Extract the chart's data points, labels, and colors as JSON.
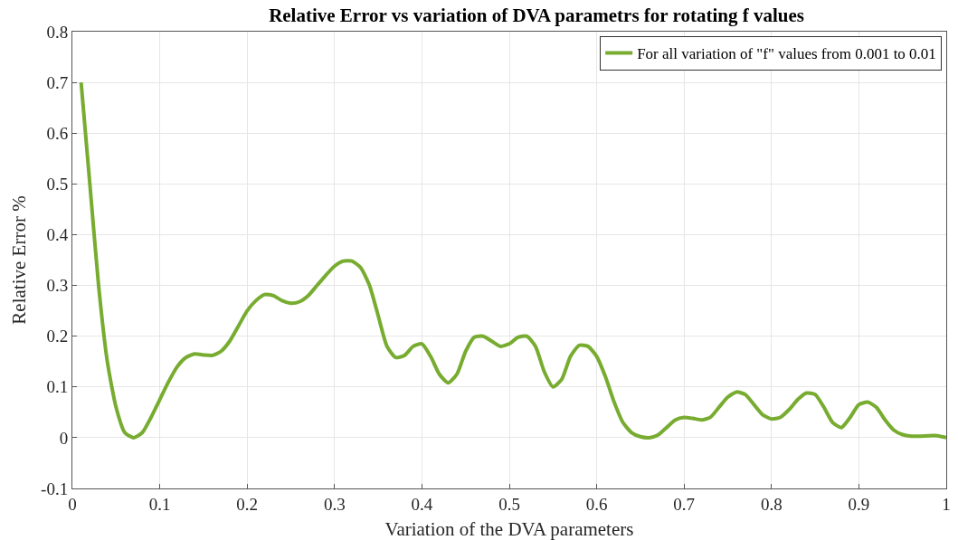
{
  "chart_data": {
    "type": "line",
    "title": "Relative Error vs variation of DVA parametrs for rotating f values",
    "xlabel": "Variation of the DVA parameters",
    "ylabel": "Relative Error %",
    "x": [
      0.01,
      0.02,
      0.03,
      0.04,
      0.05,
      0.06,
      0.07,
      0.08,
      0.09,
      0.1,
      0.11,
      0.12,
      0.13,
      0.14,
      0.15,
      0.16,
      0.17,
      0.18,
      0.19,
      0.2,
      0.21,
      0.22,
      0.23,
      0.24,
      0.25,
      0.26,
      0.27,
      0.28,
      0.29,
      0.3,
      0.31,
      0.32,
      0.33,
      0.34,
      0.35,
      0.36,
      0.37,
      0.38,
      0.39,
      0.4,
      0.41,
      0.42,
      0.43,
      0.44,
      0.45,
      0.46,
      0.47,
      0.48,
      0.49,
      0.5,
      0.51,
      0.52,
      0.53,
      0.54,
      0.55,
      0.56,
      0.57,
      0.58,
      0.59,
      0.6,
      0.61,
      0.62,
      0.63,
      0.64,
      0.65,
      0.66,
      0.67,
      0.68,
      0.69,
      0.7,
      0.71,
      0.72,
      0.73,
      0.74,
      0.75,
      0.76,
      0.77,
      0.78,
      0.79,
      0.8,
      0.81,
      0.82,
      0.83,
      0.84,
      0.85,
      0.86,
      0.87,
      0.88,
      0.89,
      0.9,
      0.91,
      0.92,
      0.93,
      0.94,
      0.95,
      0.96,
      0.97,
      0.98,
      0.99,
      1.0
    ],
    "series": [
      {
        "name": "For all variation of \"f\" values from 0.001 to 0.01",
        "color": "#77ac30",
        "values": [
          0.7,
          0.5,
          0.3,
          0.15,
          0.06,
          0.01,
          0.0,
          0.01,
          0.04,
          0.075,
          0.11,
          0.14,
          0.158,
          0.165,
          0.163,
          0.162,
          0.17,
          0.19,
          0.22,
          0.25,
          0.27,
          0.282,
          0.28,
          0.27,
          0.265,
          0.268,
          0.28,
          0.3,
          0.32,
          0.338,
          0.348,
          0.348,
          0.335,
          0.3,
          0.24,
          0.18,
          0.158,
          0.162,
          0.18,
          0.185,
          0.16,
          0.125,
          0.108,
          0.125,
          0.17,
          0.198,
          0.2,
          0.19,
          0.18,
          0.185,
          0.198,
          0.2,
          0.18,
          0.13,
          0.1,
          0.115,
          0.16,
          0.182,
          0.18,
          0.16,
          0.12,
          0.07,
          0.03,
          0.01,
          0.002,
          0.0,
          0.005,
          0.02,
          0.035,
          0.04,
          0.038,
          0.035,
          0.04,
          0.06,
          0.08,
          0.09,
          0.085,
          0.065,
          0.045,
          0.037,
          0.04,
          0.055,
          0.075,
          0.088,
          0.085,
          0.06,
          0.03,
          0.02,
          0.04,
          0.065,
          0.07,
          0.06,
          0.035,
          0.015,
          0.006,
          0.003,
          0.003,
          0.004,
          0.004,
          0.0
        ]
      }
    ],
    "xlim": [
      0,
      1
    ],
    "xticks": [
      0,
      0.1,
      0.2,
      0.3,
      0.4,
      0.5,
      0.6,
      0.7,
      0.8,
      0.9,
      1
    ],
    "ylim": [
      -0.1,
      0.8
    ],
    "yticks": [
      -0.1,
      0,
      0.1,
      0.2,
      0.3,
      0.4,
      0.5,
      0.6,
      0.7,
      0.8
    ],
    "grid": true,
    "legend": "top right",
    "line_style": "solid",
    "marker": "none"
  }
}
